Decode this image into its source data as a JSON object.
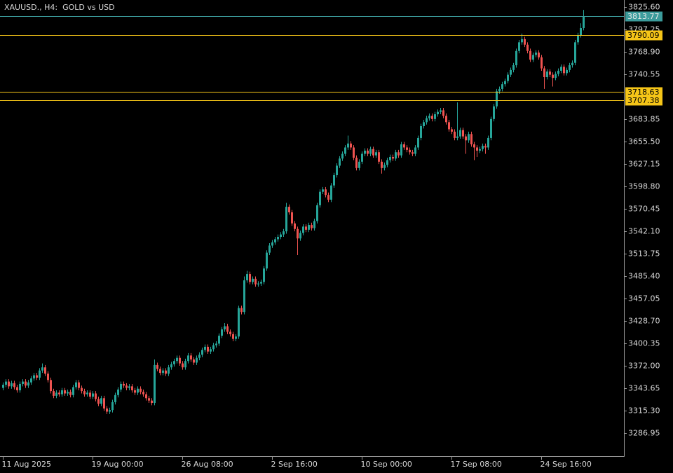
{
  "chart_data": {
    "type": "candlestick",
    "title": "XAUUSD., H4:  GOLD vs USD",
    "up_color": "#26a69a",
    "down_color": "#ef5350",
    "open": [
      3344,
      3348,
      3352,
      3346,
      3350,
      3345,
      3341,
      3349,
      3352,
      3347,
      3351,
      3356,
      3360,
      3357,
      3366,
      3370,
      3362,
      3354,
      3340,
      3334,
      3338,
      3336,
      3341,
      3337,
      3339,
      3335,
      3345,
      3351,
      3344,
      3340,
      3336,
      3338,
      3333,
      3337,
      3330,
      3324,
      3331,
      3318,
      3314,
      3316,
      3326,
      3335,
      3342,
      3349,
      3347,
      3344,
      3346,
      3341,
      3338,
      3343,
      3339,
      3336,
      3331,
      3328,
      3325,
      3373,
      3368,
      3363,
      3366,
      3362,
      3370,
      3374,
      3378,
      3382,
      3375,
      3370,
      3378,
      3385,
      3380,
      3376,
      3382,
      3386,
      3392,
      3396,
      3390,
      3393,
      3398,
      3400,
      3410,
      3418,
      3422,
      3415,
      3412,
      3406,
      3409,
      3445,
      3440,
      3480,
      3488,
      3478,
      3482,
      3475,
      3476,
      3478,
      3495,
      3515,
      3524,
      3528,
      3532,
      3535,
      3538,
      3542,
      3573,
      3566,
      3552,
      3545,
      3533,
      3540,
      3548,
      3544,
      3550,
      3546,
      3555,
      3575,
      3592,
      3595,
      3588,
      3582,
      3600,
      3613,
      3625,
      3634,
      3640,
      3648,
      3653,
      3648,
      3635,
      3622,
      3630,
      3640,
      3644,
      3640,
      3646,
      3638,
      3642,
      3630,
      3622,
      3626,
      3632,
      3636,
      3634,
      3642,
      3638,
      3652,
      3648,
      3645,
      3642,
      3640,
      3648,
      3660,
      3675,
      3680,
      3685,
      3688,
      3684,
      3690,
      3693,
      3695,
      3688,
      3680,
      3671,
      3668,
      3660,
      3662,
      3670,
      3662,
      3657,
      3665,
      3652,
      3648,
      3644,
      3646,
      3650,
      3648,
      3660,
      3684,
      3700,
      3719,
      3722,
      3728,
      3732,
      3740,
      3746,
      3752,
      3770,
      3781,
      3785,
      3778,
      3770,
      3759,
      3765,
      3768,
      3762,
      3748,
      3737,
      3744,
      3740,
      3736,
      3741,
      3745,
      3750,
      3742,
      3746,
      3752,
      3755,
      3781,
      3790,
      3799
    ],
    "high": [
      3351,
      3355,
      3355,
      3353,
      3353,
      3348,
      3352,
      3355,
      3355,
      3354,
      3359,
      3363,
      3363,
      3369,
      3375,
      3373,
      3365,
      3357,
      3343,
      3341,
      3341,
      3344,
      3344,
      3342,
      3342,
      3348,
      3354,
      3354,
      3347,
      3343,
      3341,
      3341,
      3340,
      3340,
      3333,
      3334,
      3334,
      3321,
      3319,
      3329,
      3338,
      3345,
      3352,
      3352,
      3350,
      3349,
      3349,
      3344,
      3346,
      3346,
      3342,
      3339,
      3334,
      3331,
      3380,
      3376,
      3371,
      3369,
      3369,
      3373,
      3377,
      3381,
      3385,
      3385,
      3378,
      3381,
      3388,
      3388,
      3383,
      3385,
      3389,
      3395,
      3399,
      3399,
      3396,
      3401,
      3403,
      3413,
      3421,
      3426,
      3425,
      3418,
      3415,
      3412,
      3448,
      3448,
      3485,
      3492,
      3491,
      3485,
      3485,
      3479,
      3481,
      3498,
      3518,
      3527,
      3531,
      3535,
      3538,
      3541,
      3545,
      3578,
      3576,
      3569,
      3555,
      3548,
      3543,
      3551,
      3551,
      3553,
      3553,
      3558,
      3578,
      3595,
      3598,
      3598,
      3591,
      3603,
      3616,
      3628,
      3637,
      3643,
      3651,
      3663,
      3656,
      3651,
      3638,
      3633,
      3643,
      3647,
      3647,
      3649,
      3649,
      3645,
      3645,
      3633,
      3629,
      3635,
      3639,
      3639,
      3645,
      3645,
      3655,
      3655,
      3651,
      3648,
      3645,
      3651,
      3663,
      3678,
      3683,
      3688,
      3691,
      3691,
      3693,
      3696,
      3698,
      3698,
      3691,
      3683,
      3674,
      3671,
      3705,
      3673,
      3673,
      3665,
      3668,
      3668,
      3655,
      3651,
      3649,
      3653,
      3653,
      3663,
      3687,
      3703,
      3722,
      3725,
      3731,
      3735,
      3743,
      3749,
      3755,
      3773,
      3784,
      3792,
      3788,
      3781,
      3773,
      3768,
      3771,
      3771,
      3765,
      3751,
      3747,
      3747,
      3743,
      3744,
      3748,
      3753,
      3753,
      3749,
      3755,
      3758,
      3784,
      3793,
      3805,
      3822
    ],
    "low": [
      3341,
      3345,
      3343,
      3343,
      3342,
      3338,
      3338,
      3346,
      3344,
      3344,
      3348,
      3353,
      3354,
      3354,
      3363,
      3359,
      3351,
      3337,
      3331,
      3331,
      3333,
      3333,
      3334,
      3334,
      3332,
      3332,
      3342,
      3341,
      3337,
      3333,
      3333,
      3330,
      3330,
      3327,
      3321,
      3321,
      3315,
      3311,
      3311,
      3313,
      3323,
      3332,
      3339,
      3344,
      3341,
      3341,
      3338,
      3335,
      3335,
      3336,
      3333,
      3328,
      3325,
      3322,
      3322,
      3365,
      3360,
      3360,
      3359,
      3359,
      3367,
      3371,
      3375,
      3372,
      3367,
      3367,
      3375,
      3377,
      3373,
      3373,
      3379,
      3383,
      3389,
      3387,
      3387,
      3390,
      3395,
      3397,
      3407,
      3415,
      3412,
      3409,
      3403,
      3403,
      3406,
      3437,
      3437,
      3477,
      3475,
      3475,
      3472,
      3472,
      3473,
      3475,
      3492,
      3512,
      3521,
      3525,
      3529,
      3532,
      3535,
      3539,
      3563,
      3549,
      3542,
      3512,
      3530,
      3537,
      3541,
      3541,
      3543,
      3543,
      3552,
      3572,
      3589,
      3585,
      3579,
      3579,
      3597,
      3610,
      3622,
      3631,
      3637,
      3645,
      3645,
      3632,
      3619,
      3619,
      3627,
      3637,
      3637,
      3637,
      3635,
      3635,
      3627,
      3615,
      3619,
      3623,
      3629,
      3631,
      3631,
      3635,
      3635,
      3645,
      3642,
      3639,
      3637,
      3637,
      3645,
      3657,
      3672,
      3677,
      3682,
      3681,
      3681,
      3687,
      3690,
      3685,
      3677,
      3668,
      3665,
      3657,
      3657,
      3659,
      3659,
      3640,
      3654,
      3649,
      3632,
      3636,
      3641,
      3643,
      3640,
      3645,
      3657,
      3681,
      3697,
      3716,
      3719,
      3725,
      3729,
      3737,
      3743,
      3749,
      3767,
      3778,
      3775,
      3767,
      3756,
      3756,
      3762,
      3759,
      3745,
      3722,
      3734,
      3737,
      3725,
      3733,
      3738,
      3742,
      3739,
      3739,
      3743,
      3749,
      3752,
      3778,
      3787,
      3796
    ],
    "close": [
      3348,
      3352,
      3346,
      3350,
      3345,
      3341,
      3349,
      3352,
      3347,
      3351,
      3356,
      3360,
      3357,
      3366,
      3370,
      3362,
      3354,
      3340,
      3334,
      3338,
      3336,
      3341,
      3337,
      3339,
      3335,
      3345,
      3351,
      3344,
      3340,
      3336,
      3338,
      3333,
      3337,
      3330,
      3324,
      3331,
      3318,
      3314,
      3316,
      3326,
      3335,
      3342,
      3349,
      3347,
      3344,
      3346,
      3341,
      3338,
      3343,
      3339,
      3336,
      3331,
      3328,
      3325,
      3373,
      3368,
      3363,
      3366,
      3362,
      3370,
      3374,
      3378,
      3382,
      3375,
      3370,
      3378,
      3385,
      3380,
      3376,
      3382,
      3386,
      3392,
      3396,
      3390,
      3393,
      3398,
      3400,
      3410,
      3418,
      3422,
      3415,
      3412,
      3406,
      3409,
      3445,
      3440,
      3480,
      3488,
      3478,
      3482,
      3475,
      3476,
      3478,
      3495,
      3515,
      3524,
      3528,
      3532,
      3535,
      3538,
      3542,
      3573,
      3566,
      3552,
      3545,
      3533,
      3540,
      3548,
      3544,
      3550,
      3546,
      3555,
      3575,
      3592,
      3595,
      3588,
      3582,
      3600,
      3613,
      3625,
      3634,
      3640,
      3648,
      3653,
      3648,
      3635,
      3622,
      3630,
      3640,
      3644,
      3640,
      3646,
      3638,
      3642,
      3630,
      3622,
      3626,
      3632,
      3636,
      3634,
      3642,
      3638,
      3652,
      3648,
      3645,
      3642,
      3640,
      3648,
      3660,
      3675,
      3680,
      3685,
      3688,
      3684,
      3690,
      3693,
      3695,
      3688,
      3680,
      3671,
      3668,
      3660,
      3662,
      3670,
      3662,
      3657,
      3665,
      3652,
      3648,
      3644,
      3646,
      3650,
      3648,
      3660,
      3684,
      3700,
      3719,
      3722,
      3728,
      3732,
      3740,
      3746,
      3752,
      3770,
      3781,
      3785,
      3778,
      3770,
      3759,
      3765,
      3768,
      3762,
      3748,
      3737,
      3744,
      3740,
      3736,
      3741,
      3745,
      3750,
      3742,
      3746,
      3752,
      3755,
      3781,
      3790,
      3799,
      3814
    ],
    "ylim": [
      3257.7,
      3834.46
    ],
    "yticks": [
      {
        "value": 3825.6,
        "label": "3825.60"
      },
      3797.25,
      {
        "value": 3768.9,
        "label": "3768.90"
      },
      3740.55,
      3683.85,
      {
        "value": 3655.5,
        "label": "3655.50"
      },
      3627.15,
      {
        "value": 3598.8,
        "label": "3598.80"
      },
      3570.45,
      {
        "value": 3542.1,
        "label": "3542.10"
      },
      3513.75,
      {
        "value": 3485.4,
        "label": "3485.40"
      },
      3457.05,
      {
        "value": 3428.7,
        "label": "3428.70"
      },
      3400.35,
      {
        "value": 3372,
        "label": "3372.00"
      },
      3343.65,
      {
        "value": 3315.3,
        "label": "3315.30"
      },
      3286.95
    ],
    "xticks": [
      {
        "value": 0,
        "label": "11 Aug 2025"
      },
      {
        "value": 32,
        "label": "19 Aug 00:00"
      },
      {
        "value": 64,
        "label": "26 Aug 08:00"
      },
      {
        "value": 96,
        "label": "2 Sep 16:00"
      },
      {
        "value": 128,
        "label": "10 Sep 00:00"
      },
      {
        "value": 160,
        "label": "17 Sep 08:00"
      },
      {
        "value": 192,
        "label": "24 Sep 16:00"
      }
    ],
    "levels": [
      {
        "value": 3813.77,
        "color": "#3c9c9c",
        "text_color": "#e8e8e8"
      },
      {
        "value": 3790.09,
        "color": "#f5c518",
        "text_color": "#000000"
      },
      {
        "value": 3718.63,
        "color": "#f5c518",
        "text_color": "#000000"
      },
      {
        "value": 3707.38,
        "color": "#f5c518",
        "text_color": "#000000"
      }
    ]
  }
}
